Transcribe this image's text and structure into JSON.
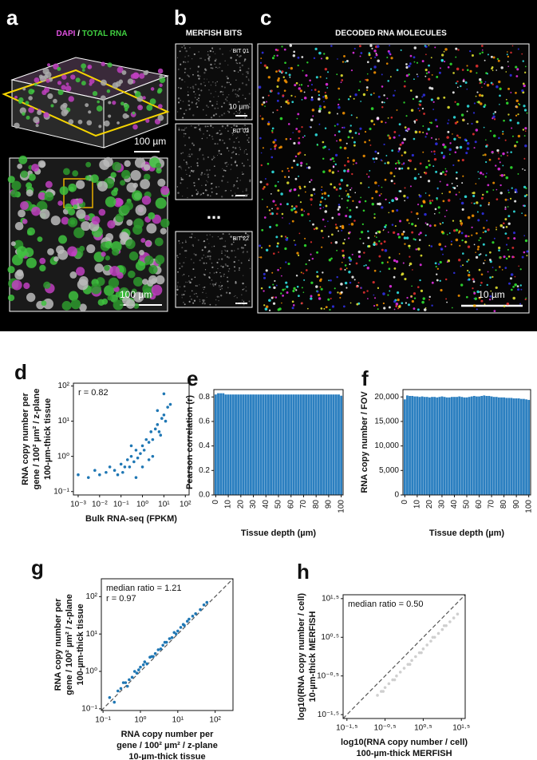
{
  "images": {
    "a": {
      "letter": "a",
      "title_dapi": "DAPI",
      "title_sep": " / ",
      "title_rna": "TOTAL RNA",
      "scale_top": "100 µm",
      "scale_bottom": "100 µm"
    },
    "b": {
      "letter": "b",
      "title": "MERFISH BITS",
      "bit1": "BIT 01",
      "bit1_scale": "10 µm",
      "bit2": "BIT 02",
      "ellipsis": "...",
      "bit3": "BIT 22"
    },
    "c": {
      "letter": "c",
      "title": "DECODED RNA MOLECULES",
      "scale": "10 µm"
    }
  },
  "chart_data": [
    {
      "type": "scatter",
      "panel": "d",
      "log": true,
      "color": "#1f77b4",
      "xlabel": "Bulk RNA-seq (FPKM)",
      "ylabel": [
        "RNA copy number per",
        "gene / 100² µm² / z-plane",
        "100-µm-thick tissue"
      ],
      "annotations": [
        "r = 0.82"
      ],
      "x": [
        0.001,
        0.003,
        0.006,
        0.01,
        0.02,
        0.03,
        0.05,
        0.07,
        0.1,
        0.12,
        0.15,
        0.2,
        0.25,
        0.3,
        0.4,
        0.5,
        0.6,
        0.8,
        1,
        1.2,
        1.5,
        2,
        2.5,
        3,
        4,
        5,
        6,
        8,
        10,
        12,
        15,
        20,
        3,
        0.5,
        1,
        2,
        5,
        10,
        7,
        0.3
      ],
      "y": [
        0.3,
        0.25,
        0.4,
        0.3,
        0.35,
        0.5,
        0.4,
        0.3,
        0.6,
        0.35,
        0.5,
        0.8,
        0.5,
        1,
        0.7,
        1.5,
        0.9,
        1.2,
        2,
        1.5,
        3,
        2.5,
        5,
        3,
        6,
        8,
        5,
        12,
        15,
        10,
        25,
        30,
        1,
        0.25,
        0.5,
        0.8,
        20,
        60,
        4,
        2
      ],
      "xlim": [
        0.0006,
        150
      ],
      "ylim": [
        0.08,
        120
      ],
      "xticks": [
        {
          "value": 0.001,
          "label": "10⁻³"
        },
        {
          "value": 0.01,
          "label": "10⁻²"
        },
        {
          "value": 0.1,
          "label": "10⁻¹"
        },
        {
          "value": 1,
          "label": "10⁰"
        },
        {
          "value": 10,
          "label": "10¹"
        },
        {
          "value": 100,
          "label": "10²"
        }
      ],
      "yticks": [
        {
          "value": 0.1,
          "label": "10⁻¹"
        },
        {
          "value": 1,
          "label": "10⁰"
        },
        {
          "value": 10,
          "label": "10¹"
        },
        {
          "value": 100,
          "label": "10²"
        }
      ]
    },
    {
      "type": "bar",
      "panel": "e",
      "color": "#2b7fc0",
      "xlabel": "Tissue depth (µm)",
      "ylabel": [
        "Pearson correlation (r)"
      ],
      "x": [
        0,
        2,
        4,
        6,
        8,
        10,
        12,
        14,
        16,
        18,
        20,
        22,
        24,
        26,
        28,
        30,
        32,
        34,
        36,
        38,
        40,
        42,
        44,
        46,
        48,
        50,
        52,
        54,
        56,
        58,
        60,
        62,
        64,
        66,
        68,
        70,
        72,
        74,
        76,
        78,
        80,
        82,
        84,
        86,
        88,
        90,
        92,
        94,
        96,
        98,
        100
      ],
      "values": [
        0.82,
        0.83,
        0.83,
        0.83,
        0.82,
        0.82,
        0.82,
        0.82,
        0.82,
        0.82,
        0.82,
        0.82,
        0.82,
        0.82,
        0.82,
        0.82,
        0.82,
        0.82,
        0.82,
        0.82,
        0.82,
        0.82,
        0.82,
        0.82,
        0.82,
        0.82,
        0.82,
        0.82,
        0.82,
        0.82,
        0.82,
        0.82,
        0.82,
        0.82,
        0.82,
        0.82,
        0.82,
        0.82,
        0.82,
        0.82,
        0.82,
        0.82,
        0.82,
        0.82,
        0.82,
        0.82,
        0.82,
        0.82,
        0.82,
        0.82,
        0.81
      ],
      "xlim": [
        -1.5,
        101.5
      ],
      "ylim": [
        0,
        0.86
      ],
      "xticks": [
        0,
        10,
        20,
        30,
        40,
        50,
        60,
        70,
        80,
        90,
        100
      ],
      "yticks": [
        {
          "value": 0,
          "label": "0.0"
        },
        0.2,
        0.4,
        0.6,
        0.8
      ]
    },
    {
      "type": "bar",
      "panel": "f",
      "color": "#2b7fc0",
      "xlabel": "Tissue depth (µm)",
      "ylabel": [
        "RNA copy number / FOV"
      ],
      "x": [
        0,
        2,
        4,
        6,
        8,
        10,
        12,
        14,
        16,
        18,
        20,
        22,
        24,
        26,
        28,
        30,
        32,
        34,
        36,
        38,
        40,
        42,
        44,
        46,
        48,
        50,
        52,
        54,
        56,
        58,
        60,
        62,
        64,
        66,
        68,
        70,
        72,
        74,
        76,
        78,
        80,
        82,
        84,
        86,
        88,
        90,
        92,
        94,
        96,
        98,
        100
      ],
      "values": [
        19500,
        20300,
        20200,
        20200,
        20100,
        20100,
        20000,
        20100,
        20000,
        20000,
        19900,
        20000,
        20000,
        19900,
        20000,
        20100,
        20000,
        19900,
        19900,
        20000,
        20000,
        20000,
        20100,
        20000,
        19900,
        19900,
        20000,
        20100,
        20200,
        20100,
        20100,
        20200,
        20300,
        20200,
        20200,
        20100,
        20000,
        20000,
        19900,
        19900,
        19900,
        19800,
        19800,
        19800,
        19700,
        19700,
        19700,
        19600,
        19600,
        19500,
        19400
      ],
      "xlim": [
        -1.5,
        101.5
      ],
      "ylim": [
        0,
        21500
      ],
      "xticks": [
        0,
        10,
        20,
        30,
        40,
        50,
        60,
        70,
        80,
        90,
        100
      ],
      "yticks": [
        0,
        {
          "value": 5000,
          "label": "5,000"
        },
        {
          "value": 10000,
          "label": "10,000"
        },
        {
          "value": 15000,
          "label": "15,000"
        },
        {
          "value": 20000,
          "label": "20,000"
        }
      ]
    },
    {
      "type": "scatter",
      "panel": "g",
      "log": true,
      "diagonal": true,
      "color": "#1f77b4",
      "xlabel": [
        "RNA copy number per",
        "gene / 100² µm² / z-plane",
        "10-µm-thick tissue"
      ],
      "ylabel": [
        "RNA copy number per",
        "gene / 100² µm² / z-plane",
        "100-µm-thick tissue"
      ],
      "annotations": [
        "median ratio = 1.21",
        "r = 0.97"
      ],
      "x": [
        0.15,
        0.2,
        0.25,
        0.3,
        0.4,
        0.5,
        0.6,
        0.7,
        0.8,
        1,
        1.2,
        1.5,
        1.8,
        2,
        2.5,
        3,
        3.5,
        4,
        5,
        6,
        7,
        8,
        10,
        12,
        15,
        18,
        20,
        25,
        30,
        40,
        50,
        60,
        0.35,
        0.9,
        2.2,
        4.5,
        9,
        14,
        0.45,
        1.3
      ],
      "y": [
        0.2,
        0.15,
        0.3,
        0.35,
        0.5,
        0.6,
        0.7,
        1,
        0.9,
        1.3,
        1.5,
        1.6,
        2.4,
        2.5,
        3,
        3.8,
        4,
        5,
        6,
        7.5,
        8,
        11,
        12,
        15,
        17,
        22,
        25,
        30,
        35,
        45,
        60,
        70,
        0.5,
        1.1,
        2.5,
        6,
        10,
        18,
        0.4,
        1.8
      ],
      "xlim": [
        0.09,
        300
      ],
      "ylim": [
        0.09,
        300
      ],
      "xticks": [
        {
          "value": 0.1,
          "label": "10⁻¹"
        },
        {
          "value": 1,
          "label": "10⁰"
        },
        {
          "value": 10,
          "label": "10¹"
        },
        {
          "value": 100,
          "label": "10²"
        }
      ],
      "yticks": [
        {
          "value": 0.1,
          "label": "10⁻¹"
        },
        {
          "value": 1,
          "label": "10⁰"
        },
        {
          "value": 10,
          "label": "10¹"
        },
        {
          "value": 100,
          "label": "10²"
        }
      ]
    },
    {
      "type": "scatter",
      "panel": "h",
      "diagonal": true,
      "color": "#cfcfcf",
      "xlabel": [
        "log10(RNA copy number / cell)",
        "100-µm-thick MERFISH"
      ],
      "ylabel": [
        "log10(RNA copy number / cell)",
        "10-µm-thick MERFISH"
      ],
      "annotations": [
        "median ratio = 0.50"
      ],
      "x": [
        -0.7,
        -0.6,
        -0.5,
        -0.4,
        -0.3,
        -0.2,
        -0.1,
        0,
        0.1,
        0.2,
        0.3,
        0.4,
        0.5,
        0.6,
        0.7,
        0.8,
        0.9,
        1,
        1.1,
        1.2,
        1.3,
        1.4,
        -0.55,
        -0.25,
        0.15,
        0.45,
        0.75,
        1.05
      ],
      "y": [
        -1.0,
        -0.9,
        -0.8,
        -0.7,
        -0.6,
        -0.5,
        -0.4,
        -0.3,
        -0.2,
        -0.1,
        0,
        0.1,
        0.2,
        0.3,
        0.4,
        0.5,
        0.6,
        0.7,
        0.8,
        0.9,
        1.0,
        1.1,
        -0.9,
        -0.6,
        -0.2,
        0.1,
        0.5,
        0.8
      ],
      "xlim": [
        -1.6,
        1.6
      ],
      "ylim": [
        -1.6,
        1.6
      ],
      "xticks": [
        {
          "value": -1.5,
          "label": "10⁻¹·⁵"
        },
        {
          "value": -0.5,
          "label": "10⁻⁰·⁵"
        },
        {
          "value": 0.5,
          "label": "10⁰·⁵"
        },
        {
          "value": 1.5,
          "label": "10¹·⁵"
        }
      ],
      "yticks": [
        {
          "value": -1.5,
          "label": "10⁻¹·⁵"
        },
        {
          "value": -0.5,
          "label": "10⁻⁰·⁵"
        },
        {
          "value": 0.5,
          "label": "10⁰·⁵"
        },
        {
          "value": 1.5,
          "label": "10¹·⁵"
        }
      ]
    }
  ]
}
